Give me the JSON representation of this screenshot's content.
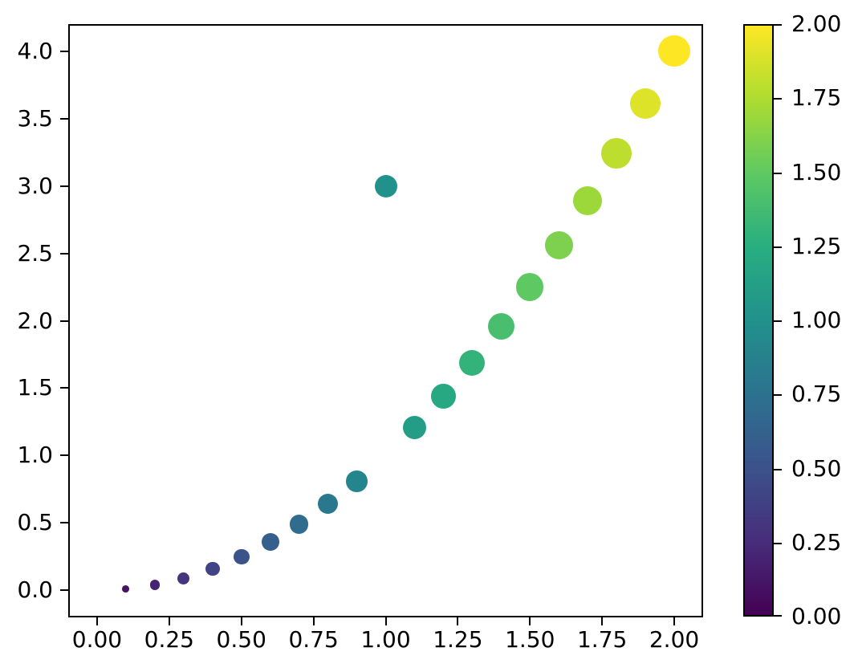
{
  "figure": {
    "background": "#ffffff"
  },
  "chart_data": {
    "type": "scatter",
    "title": "",
    "xlabel": "",
    "ylabel": "",
    "grid": false,
    "legend": null,
    "points": [
      {
        "x": 0.1,
        "y": 0.01
      },
      {
        "x": 0.2,
        "y": 0.04
      },
      {
        "x": 0.3,
        "y": 0.09
      },
      {
        "x": 0.4,
        "y": 0.16
      },
      {
        "x": 0.5,
        "y": 0.25
      },
      {
        "x": 0.6,
        "y": 0.36
      },
      {
        "x": 0.7,
        "y": 0.49
      },
      {
        "x": 0.8,
        "y": 0.64
      },
      {
        "x": 0.9,
        "y": 0.81
      },
      {
        "x": 1.0,
        "y": 3.0
      },
      {
        "x": 1.1,
        "y": 1.21
      },
      {
        "x": 1.2,
        "y": 1.44
      },
      {
        "x": 1.3,
        "y": 1.69
      },
      {
        "x": 1.4,
        "y": 1.96
      },
      {
        "x": 1.5,
        "y": 2.25
      },
      {
        "x": 1.6,
        "y": 2.56
      },
      {
        "x": 1.7,
        "y": 2.89
      },
      {
        "x": 1.8,
        "y": 3.24
      },
      {
        "x": 1.9,
        "y": 3.61
      },
      {
        "x": 2.0,
        "y": 4.0
      }
    ],
    "color_encoding": "marker color = x value, viridis colormap over [0, 2]",
    "size_encoding": "marker area proportional to x value",
    "marker_base_diameter_px": 28,
    "xlim": [
      -0.1,
      2.1
    ],
    "ylim": [
      -0.2,
      4.2
    ],
    "x_ticks": {
      "values": [
        0.0,
        0.25,
        0.5,
        0.75,
        1.0,
        1.25,
        1.5,
        1.75,
        2.0
      ],
      "labels": [
        "0.00",
        "0.25",
        "0.50",
        "0.75",
        "1.00",
        "1.25",
        "1.50",
        "1.75",
        "2.00"
      ]
    },
    "y_ticks": {
      "values": [
        0.0,
        0.5,
        1.0,
        1.5,
        2.0,
        2.5,
        3.0,
        3.5,
        4.0
      ],
      "labels": [
        "0.0",
        "0.5",
        "1.0",
        "1.5",
        "2.0",
        "2.5",
        "3.0",
        "3.5",
        "4.0"
      ]
    },
    "colorbar": {
      "position": "right",
      "colormap": "viridis",
      "min": 0,
      "max": 2,
      "tick_values": [
        0.0,
        0.25,
        0.5,
        0.75,
        1.0,
        1.25,
        1.5,
        1.75,
        2.0
      ],
      "tick_labels": [
        "0.00",
        "0.25",
        "0.50",
        "0.75",
        "1.00",
        "1.25",
        "1.50",
        "1.75",
        "2.00"
      ]
    },
    "colormap_anchors": [
      "#440154",
      "#472d7b",
      "#3b528b",
      "#2c728e",
      "#21918c",
      "#28ae80",
      "#5ec962",
      "#addc30",
      "#fde725"
    ],
    "colors": {
      "spine": "#000000",
      "tick_label": "#000000"
    }
  }
}
